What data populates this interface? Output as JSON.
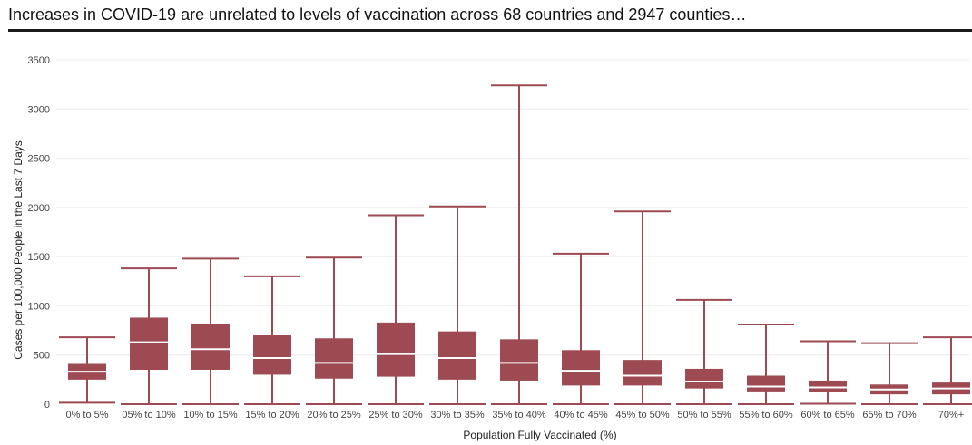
{
  "chart_data": {
    "type": "boxplot",
    "title": "Increases in COVID-19 are unrelated to levels of vaccination across 68 countries and 2947 counties…",
    "xlabel": "Population Fully Vaccinated (%)",
    "ylabel": "Cases per 100,000 People in the Last 7 Days",
    "ylim": [
      0,
      3500
    ],
    "yticks": [
      "0",
      "500",
      "1000",
      "1500",
      "2000",
      "2500",
      "3000",
      "3500"
    ],
    "grid": true,
    "color": "#9e4a52",
    "median_color": "#ffffff",
    "categories": [
      "0% to 5%",
      "05% to 10%",
      "10% to 15%",
      "15% to 20%",
      "20% to 25%",
      "25% to 30%",
      "30% to 35%",
      "35% to 40%",
      "40% to 45%",
      "45% to 50%",
      "50% to 55%",
      "55% to 60%",
      "60% to 65%",
      "65% to 70%",
      "70%+"
    ],
    "boxes": [
      {
        "min": 15,
        "q1": 250,
        "median": 330,
        "q3": 410,
        "max": 680
      },
      {
        "min": 0,
        "q1": 350,
        "median": 630,
        "q3": 880,
        "max": 1380
      },
      {
        "min": 0,
        "q1": 350,
        "median": 560,
        "q3": 820,
        "max": 1480
      },
      {
        "min": 0,
        "q1": 300,
        "median": 470,
        "q3": 700,
        "max": 1300
      },
      {
        "min": 0,
        "q1": 260,
        "median": 420,
        "q3": 670,
        "max": 1490
      },
      {
        "min": 0,
        "q1": 280,
        "median": 510,
        "q3": 830,
        "max": 1920
      },
      {
        "min": 0,
        "q1": 250,
        "median": 470,
        "q3": 740,
        "max": 2010
      },
      {
        "min": 0,
        "q1": 240,
        "median": 420,
        "q3": 660,
        "max": 3240
      },
      {
        "min": 0,
        "q1": 190,
        "median": 340,
        "q3": 550,
        "max": 1530
      },
      {
        "min": 0,
        "q1": 190,
        "median": 290,
        "q3": 450,
        "max": 1960
      },
      {
        "min": 0,
        "q1": 160,
        "median": 230,
        "q3": 360,
        "max": 1060
      },
      {
        "min": 0,
        "q1": 130,
        "median": 180,
        "q3": 290,
        "max": 810
      },
      {
        "min": 5,
        "q1": 120,
        "median": 170,
        "q3": 240,
        "max": 640
      },
      {
        "min": 0,
        "q1": 100,
        "median": 150,
        "q3": 200,
        "max": 620
      },
      {
        "min": 0,
        "q1": 100,
        "median": 160,
        "q3": 220,
        "max": 680
      }
    ]
  }
}
